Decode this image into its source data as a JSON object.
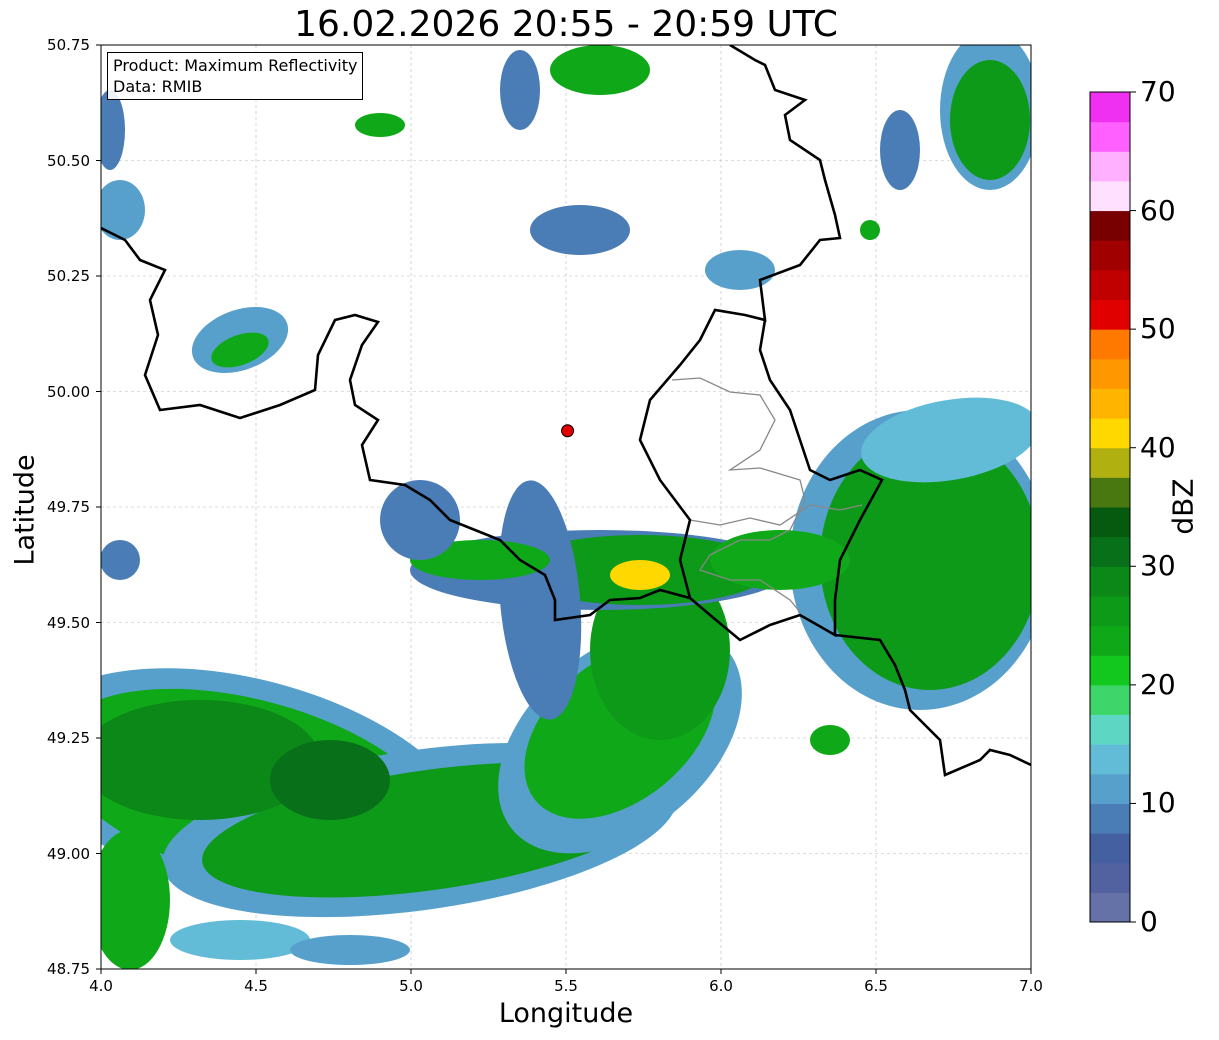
{
  "title": "16.02.2026 20:55 - 20:59 UTC",
  "xlabel": "Longitude",
  "ylabel": "Latitude",
  "x_ticks": [
    "4.0",
    "4.5",
    "5.0",
    "5.5",
    "6.0",
    "6.5",
    "7.0"
  ],
  "y_ticks": [
    "50.75",
    "50.50",
    "50.25",
    "50.00",
    "49.75",
    "49.50",
    "49.25",
    "49.00",
    "48.75"
  ],
  "legend": {
    "product": "Product: Maximum Reflectivity",
    "data": "Data: RMIB"
  },
  "colorbar": {
    "label": "dBZ",
    "ticks": [
      "0",
      "10",
      "20",
      "30",
      "40",
      "50",
      "60",
      "70"
    ],
    "colors": [
      "#6572a8",
      "#5262a0",
      "#4560a0",
      "#4a7cb5",
      "#58a0cc",
      "#62bcd8",
      "#5ed6c4",
      "#3ed66a",
      "#12c81e",
      "#0fa818",
      "#0d9a18",
      "#0b8818",
      "#087018",
      "#065a10",
      "#4a7810",
      "#b0b010",
      "#ffd800",
      "#ffb400",
      "#ff9800",
      "#ff7800",
      "#e00000",
      "#c00000",
      "#a00000",
      "#780000",
      "#ffe0ff",
      "#ffb0ff",
      "#ff60ff",
      "#f030f0"
    ]
  },
  "radar_site": {
    "lon": 5.505,
    "lat": 49.915,
    "color": "#e00000"
  },
  "extent": {
    "lon": [
      4.0,
      7.0
    ],
    "lat": [
      48.75,
      50.75
    ]
  }
}
